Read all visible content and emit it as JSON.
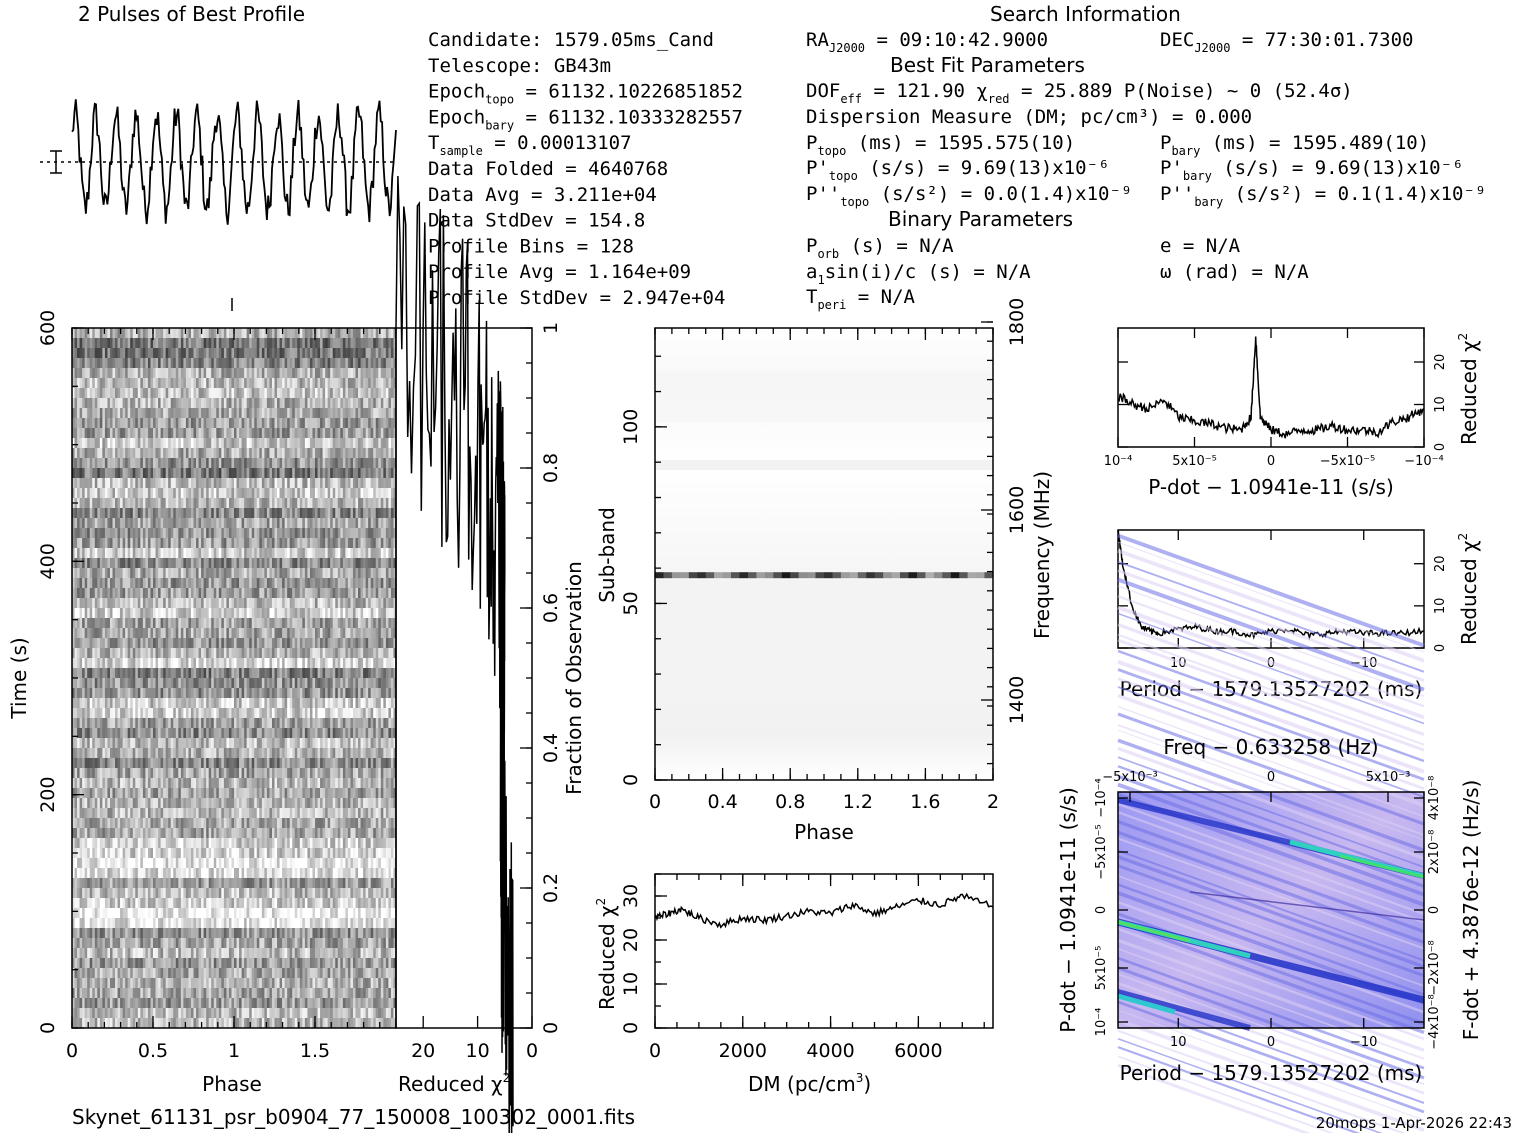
{
  "header": {
    "profile_title": "2 Pulses of Best Profile",
    "search_title": "Search Information",
    "best_fit_title": "Best Fit Parameters",
    "binary_title": "Binary Parameters"
  },
  "info_left": [
    {
      "label": "Candidate:  1579.05ms_Cand"
    },
    {
      "label": "Telescope:  GB43m"
    },
    {
      "label": "Epoch",
      "sub": "topo",
      "value": " = 61132.10226851852"
    },
    {
      "label": "Epoch",
      "sub": "bary",
      "value": " = 61132.10333282557"
    },
    {
      "label": "T",
      "sub": "sample",
      "value": "         =  0.00013107"
    },
    {
      "label": "Data Folded     =  4640768"
    },
    {
      "label": "Data Avg        =  3.211e+04"
    },
    {
      "label": "Data StdDev     =  154.8"
    },
    {
      "label": "Profile Bins    =  128"
    },
    {
      "label": "Profile Avg     =  1.164e+09"
    },
    {
      "label": "Profile StdDev  =  2.947e+04"
    }
  ],
  "info_mid": {
    "ra_label": "RA",
    "ra_sub": "J2000",
    "ra_value": " = 09:10:42.9000",
    "dec_label": "DEC",
    "dec_sub": "J2000",
    "dec_value": " = 77:30:01.7300",
    "dof": "DOF",
    "dof_sub": "eff",
    "dof_value": " = 121.90  χ",
    "chi_sub": "red",
    "chi_value": " = 25.889  P(Noise) ~ 0   (52.4σ)",
    "dm_line": "Dispersion Measure (DM; pc/cm³) = 0.000",
    "ptopo": "P",
    "ptopo_sub": "topo",
    "ptopo_value": " (ms) =  1595.575(10)",
    "pdtopo": "P'",
    "pdtopo_sub": "topo",
    "pdtopo_value": " (s/s) =  9.69(13)x10⁻⁶",
    "pddtopo": "P''",
    "pddtopo_sub": "topo",
    "pddtopo_value": " (s/s²) = 0.0(1.4)x10⁻⁹",
    "porb": "P",
    "porb_sub": "orb",
    "porb_value": " (s) = N/A",
    "asini": "a",
    "asini_sub": "1",
    "asini_value": "sin(i)/c (s) = N/A",
    "tperi": "T",
    "tperi_sub": "peri",
    "tperi_value": " = N/A"
  },
  "info_right": {
    "pbary": "P",
    "pbary_sub": "bary",
    "pbary_value": " (ms) =  1595.489(10)",
    "pdbary": "P'",
    "pdbary_sub": "bary",
    "pdbary_value": " (s/s) =  9.69(13)x10⁻⁶",
    "pddbary": "P''",
    "pddbary_sub": "bary",
    "pddbary_value": " (s/s²) =  0.1(1.4)x10⁻⁹",
    "ecc": "e = N/A",
    "omega": "ω (rad) = N/A"
  },
  "footer": {
    "filename": "Skynet_61131_psr_b0904_77_150008_100302_0001.fits",
    "stamp": "20mops  1-Apr-2026 22:43"
  },
  "chart_data": [
    {
      "type": "line",
      "id": "profile",
      "title": "2 Pulses of Best Profile",
      "xlim": [
        0,
        2
      ],
      "note": "8 peaks per pulse repeated twice; profile values shown in normalized units"
    },
    {
      "type": "heatmap",
      "id": "time-phase",
      "xlabel": "Phase",
      "ylabel": "Time (s)",
      "xlim": [
        0,
        2
      ],
      "ylim": [
        0,
        600
      ],
      "xticks": [
        "0",
        "0.5",
        "1",
        "1.5"
      ],
      "yticks": [
        "0",
        "200",
        "400",
        "600"
      ]
    },
    {
      "type": "line",
      "id": "time-chi2",
      "xlabel": "Reduced χ²",
      "ylabel": "Fraction of Observation",
      "xlim": [
        25,
        0
      ],
      "ylim": [
        0,
        1
      ],
      "xticks": [
        "20",
        "10",
        "0"
      ],
      "yticks": [
        "0",
        "0.2",
        "0.4",
        "0.6",
        "0.8",
        "1"
      ],
      "x": [
        3.5,
        4.2,
        4.8,
        5.5,
        5.8,
        5.6,
        5.2,
        5.0,
        5.4,
        6.2,
        7.5,
        9.5,
        12.5,
        16.0,
        20.0,
        25.0
      ],
      "y": [
        0.0,
        0.05,
        0.12,
        0.2,
        0.3,
        0.4,
        0.5,
        0.58,
        0.65,
        0.72,
        0.78,
        0.84,
        0.89,
        0.93,
        0.97,
        1.0
      ]
    },
    {
      "type": "heatmap",
      "id": "subband-phase",
      "xlabel": "Phase",
      "ylabel": "Sub-band",
      "y2label": "Frequency (MHz)",
      "xlim": [
        0,
        2
      ],
      "ylim": [
        0,
        128
      ],
      "xticks": [
        "0",
        "0.4",
        "0.8",
        "1.2",
        "1.6",
        "2"
      ],
      "yticks": [
        "0",
        "50",
        "100"
      ],
      "y2ticks": [
        "1400",
        "1600",
        "1800"
      ],
      "bright_band_subband": 58
    },
    {
      "type": "line",
      "id": "dm-chi2",
      "xlabel": "DM (pc/cm³)",
      "ylabel": "Reduced χ²",
      "xlim": [
        0,
        7700
      ],
      "ylim": [
        0,
        35
      ],
      "xticks": [
        "0",
        "2000",
        "4000",
        "6000"
      ],
      "yticks": [
        "0",
        "10",
        "20",
        "30"
      ],
      "x": [
        0,
        300,
        600,
        1000,
        1500,
        2000,
        2500,
        3000,
        3500,
        4000,
        4500,
        5000,
        5500,
        6000,
        6500,
        7000,
        7700
      ],
      "y": [
        25,
        26,
        27,
        25,
        23.5,
        25,
        24.5,
        25.5,
        26.5,
        26,
        28,
        26,
        27.5,
        29,
        28,
        30,
        27.5
      ]
    },
    {
      "type": "line",
      "id": "pdot-chi2",
      "xlabel": "P-dot − 1.0941e-11 (s/s)",
      "ylabel": "Reduced χ²",
      "xlim": [
        0.0001,
        -0.0001
      ],
      "ylim": [
        0,
        28
      ],
      "xticks": [
        "10⁻⁴",
        "5x10⁻⁵",
        "0",
        "−5x10⁻⁵",
        "−10⁻⁴"
      ],
      "yticks": [
        "0",
        "10",
        "20"
      ],
      "x": [
        0.0001,
        9e-05,
        8e-05,
        7e-05,
        6e-05,
        5e-05,
        4e-05,
        3e-05,
        2e-05,
        1.3e-05,
        1e-05,
        7e-06,
        0.0,
        -1e-05,
        -2e-05,
        -3e-05,
        -4e-05,
        -5e-05,
        -6e-05,
        -7e-05,
        -8e-05,
        -9e-05,
        -0.0001
      ],
      "y": [
        12,
        10,
        9,
        11,
        7,
        6,
        5.5,
        4.5,
        4,
        7,
        26,
        7,
        4,
        3,
        4,
        4,
        5,
        4,
        4,
        3.5,
        6,
        7,
        9
      ]
    },
    {
      "type": "line",
      "id": "period-chi2",
      "xlabel": "Period − 1579.13527202 (ms)",
      "ylabel": "Reduced χ²",
      "xlim": [
        16.5,
        -16.5
      ],
      "ylim": [
        0,
        28
      ],
      "xticks": [
        "10",
        "0",
        "−10"
      ],
      "yticks": [
        "0",
        "10",
        "20"
      ],
      "x": [
        16.5,
        16,
        15,
        14,
        13,
        12,
        10,
        8,
        6,
        4,
        2,
        0,
        -2,
        -4,
        -6,
        -8,
        -10,
        -12,
        -14,
        -16.5
      ],
      "y": [
        28,
        20,
        10,
        5,
        4,
        3.5,
        4.5,
        5,
        4,
        4,
        3,
        4,
        4.5,
        3,
        3.5,
        4,
        3.5,
        3.5,
        3.5,
        4
      ]
    },
    {
      "type": "heatmap",
      "id": "pdot-period",
      "title": "Freq − 0.633258 (Hz)",
      "xlabel": "Period − 1579.13527202 (ms)",
      "ylabel": "P-dot − 1.0941e-11 (s/s)",
      "y2label": "F-dot + 4.3876e-12 (Hz/s)",
      "xticks": [
        "10",
        "0",
        "−10"
      ],
      "x2ticks": [
        "−5x10⁻³",
        "0",
        "5x10⁻³"
      ],
      "yticks": [
        "10⁻⁴",
        "5x10⁻⁵",
        "0",
        "−5x10⁻⁵",
        "−10⁻⁴"
      ],
      "y2ticks": [
        "−4x10⁻⁸",
        "−2x10⁻⁸",
        "0",
        "2x10⁻⁸",
        "4x10⁻⁸"
      ]
    }
  ]
}
